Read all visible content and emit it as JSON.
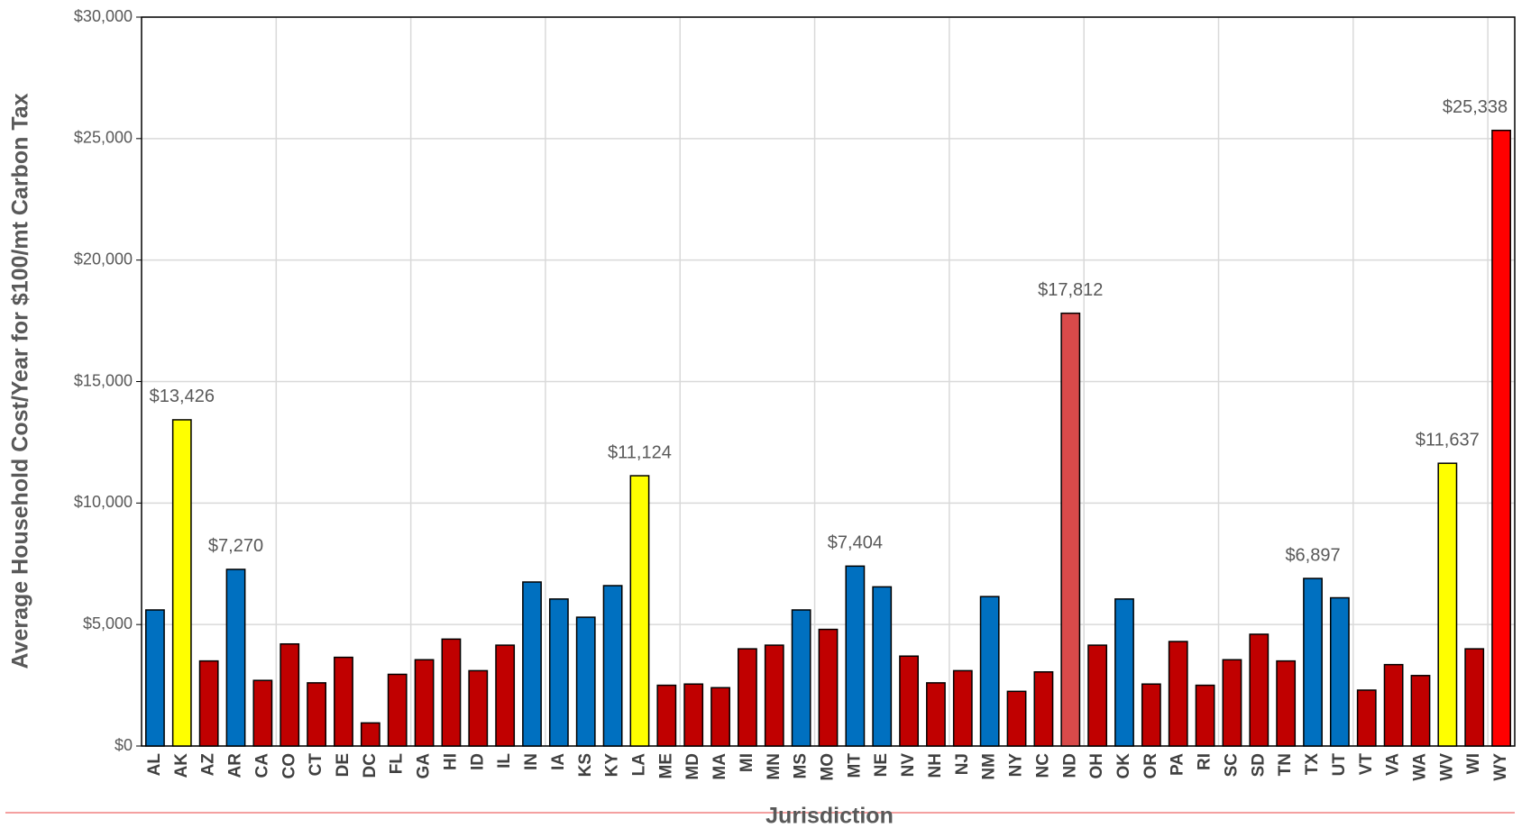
{
  "chart_data": {
    "type": "bar",
    "x_label": "Jurisdiction",
    "y_label": "Average Household Cost/Year for $100/mt Carbon Tax",
    "categories": [
      "AL",
      "AK",
      "AZ",
      "AR",
      "CA",
      "CO",
      "CT",
      "DE",
      "DC",
      "FL",
      "GA",
      "HI",
      "ID",
      "IL",
      "IN",
      "IA",
      "KS",
      "KY",
      "LA",
      "ME",
      "MD",
      "MA",
      "MI",
      "MN",
      "MS",
      "MO",
      "MT",
      "NE",
      "NV",
      "NH",
      "NJ",
      "NM",
      "NY",
      "NC",
      "ND",
      "OH",
      "OK",
      "OR",
      "PA",
      "RI",
      "SC",
      "SD",
      "TN",
      "TX",
      "UT",
      "VT",
      "VA",
      "WA",
      "WV",
      "WI",
      "WY"
    ],
    "values": [
      5600,
      13426,
      3500,
      7270,
      2700,
      4200,
      2600,
      3650,
      950,
      2950,
      3550,
      4400,
      3100,
      4150,
      6750,
      6050,
      5300,
      6600,
      11124,
      2500,
      2550,
      2400,
      4000,
      4150,
      5600,
      4800,
      7404,
      6550,
      3700,
      2600,
      3100,
      6150,
      2250,
      3050,
      17812,
      4150,
      6050,
      2550,
      4300,
      2500,
      3550,
      4600,
      3500,
      6897,
      6100,
      2300,
      3350,
      2900,
      11637,
      4000,
      25338
    ],
    "value_labels": [
      null,
      "$13,426",
      null,
      "$7,270",
      null,
      null,
      null,
      null,
      null,
      null,
      null,
      null,
      null,
      null,
      null,
      null,
      null,
      null,
      "$11,124",
      null,
      null,
      null,
      null,
      null,
      null,
      null,
      "$7,404",
      null,
      null,
      null,
      null,
      null,
      null,
      null,
      "$17,812",
      null,
      null,
      null,
      null,
      null,
      null,
      null,
      null,
      "$6,897",
      null,
      null,
      null,
      null,
      "$11,637",
      null,
      "$25,338"
    ],
    "colors": [
      "#0070c0",
      "#ffff00",
      "#c00000",
      "#0070c0",
      "#c00000",
      "#c00000",
      "#c00000",
      "#c00000",
      "#c00000",
      "#c00000",
      "#c00000",
      "#c00000",
      "#c00000",
      "#c00000",
      "#0070c0",
      "#0070c0",
      "#0070c0",
      "#0070c0",
      "#ffff00",
      "#c00000",
      "#c00000",
      "#c00000",
      "#c00000",
      "#c00000",
      "#0070c0",
      "#c00000",
      "#0070c0",
      "#0070c0",
      "#c00000",
      "#c00000",
      "#c00000",
      "#0070c0",
      "#c00000",
      "#c00000",
      "#d94a4a",
      "#c00000",
      "#0070c0",
      "#c00000",
      "#c00000",
      "#c00000",
      "#c00000",
      "#c00000",
      "#c00000",
      "#0070c0",
      "#0070c0",
      "#c00000",
      "#c00000",
      "#c00000",
      "#ffff00",
      "#c00000",
      "#ff0000"
    ],
    "ylim": [
      0,
      30000
    ],
    "yticks": [
      {
        "value": 0,
        "label": "$0"
      },
      {
        "value": 5000,
        "label": "$5,000"
      },
      {
        "value": 10000,
        "label": "$10,000"
      },
      {
        "value": 15000,
        "label": "$15,000"
      },
      {
        "value": 20000,
        "label": "$20,000"
      },
      {
        "value": 25000,
        "label": "$25,000"
      },
      {
        "value": 30000,
        "label": "$30,000"
      }
    ],
    "grid": true
  }
}
